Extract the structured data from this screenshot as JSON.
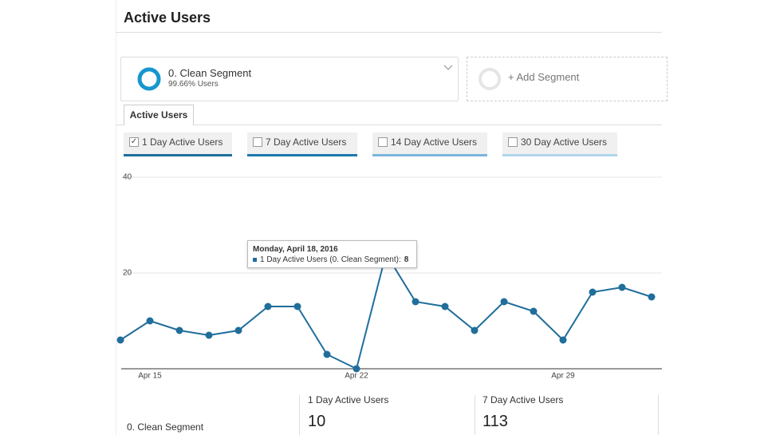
{
  "header": {
    "title": "Active Users"
  },
  "segment": {
    "name": "0. Clean Segment",
    "detail": "99.66% Users"
  },
  "add_segment": "+ Add Segment",
  "tab": "Active Users",
  "metrics": [
    {
      "label": "1 Day Active Users",
      "checked": true,
      "color": "#1f6e9b"
    },
    {
      "label": "7 Day Active Users",
      "checked": false,
      "color": "#1b78ad"
    },
    {
      "label": "14 Day Active Users",
      "checked": false,
      "color": "#7ab6dc"
    },
    {
      "label": "30 Day Active Users",
      "checked": false,
      "color": "#b0d4ec"
    }
  ],
  "chart_data": {
    "type": "line",
    "categories": [
      null,
      "Apr 15",
      null,
      null,
      null,
      null,
      null,
      null,
      "Apr 22",
      null,
      null,
      null,
      null,
      null,
      null,
      "Apr 29",
      null,
      null,
      null
    ],
    "series": [
      {
        "name": "1 Day Active Users",
        "color": "#1f6e9b",
        "values": [
          6,
          10,
          8,
          7,
          8,
          13,
          13,
          3,
          0,
          24,
          14,
          13,
          8,
          14,
          12,
          6,
          16,
          17,
          15
        ]
      }
    ],
    "ylim": [
      0,
      40
    ],
    "yticks": [
      20,
      40
    ],
    "grid": true
  },
  "tooltip": {
    "date": "Monday, April 18, 2016",
    "label": "1 Day Active Users (0. Clean Segment):",
    "value": 8
  },
  "summary": {
    "segment": "0. Clean Segment",
    "cards": [
      {
        "label": "1 Day Active Users",
        "value": 10
      },
      {
        "label": "7 Day Active Users",
        "value": 113
      }
    ]
  }
}
